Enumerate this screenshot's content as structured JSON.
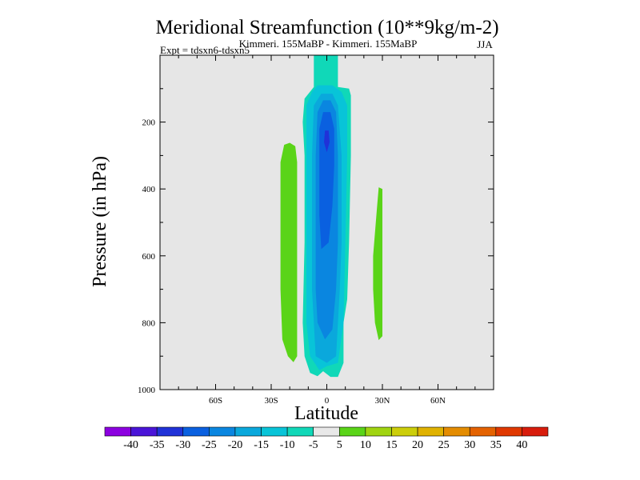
{
  "chart_data": {
    "type": "heatmap",
    "title": "Meridional Streamfunction (10**9kg/m-2)",
    "subtitle_center": "Kimmeri. 155MaBP - Kimmeri. 155MaBP",
    "subtitle_left": "Expt = tdsxn6-tdsxn5",
    "subtitle_right": "JJA",
    "xlabel": "Latitude",
    "ylabel": "Pressure (in hPa)",
    "x_range": [
      -90,
      90
    ],
    "y_range": [
      0,
      1000
    ],
    "x_ticks": [
      {
        "value": -60,
        "label": "60S"
      },
      {
        "value": -30,
        "label": "30S"
      },
      {
        "value": 0,
        "label": "0"
      },
      {
        "value": 30,
        "label": "30N"
      },
      {
        "value": 60,
        "label": "60N"
      }
    ],
    "y_ticks": [
      {
        "value": 200,
        "label": "200"
      },
      {
        "value": 400,
        "label": "400"
      },
      {
        "value": 600,
        "label": "600"
      },
      {
        "value": 800,
        "label": "800"
      },
      {
        "value": 1000,
        "label": "1000"
      }
    ],
    "colorbar": {
      "labels": [
        "-40",
        "-35",
        "-30",
        "-25",
        "-20",
        "-15",
        "-10",
        "-5",
        "5",
        "10",
        "15",
        "20",
        "25",
        "30",
        "35",
        "40"
      ],
      "colors": [
        "#8c00e0",
        "#4a14d8",
        "#2032d8",
        "#0a60e0",
        "#0a86e0",
        "#0aa8dc",
        "#08c4d8",
        "#10d8b8",
        "#e8e8e8",
        "#5ad418",
        "#a0d410",
        "#ccce0a",
        "#e0b200",
        "#e48c00",
        "#e46200",
        "#e03800",
        "#d81c0c"
      ]
    },
    "contours": [
      {
        "level_index": 9,
        "polygon": [
          [
            -23,
            268
          ],
          [
            -20,
            262
          ],
          [
            -17,
            272
          ],
          [
            -16,
            320
          ],
          [
            -16,
            580
          ],
          [
            -16,
            780
          ],
          [
            -16,
            900
          ],
          [
            -18,
            918
          ],
          [
            -21,
            900
          ],
          [
            -24,
            850
          ],
          [
            -25,
            700
          ],
          [
            -25,
            500
          ],
          [
            -25,
            320
          ]
        ]
      },
      {
        "level_index": 9,
        "polygon": [
          [
            28,
            395
          ],
          [
            30,
            400
          ],
          [
            30,
            600
          ],
          [
            30,
            840
          ],
          [
            28,
            852
          ],
          [
            26,
            800
          ],
          [
            25,
            700
          ],
          [
            25,
            600
          ],
          [
            27,
            460
          ]
        ]
      },
      {
        "level_index": 7,
        "polygon": [
          [
            -7,
            0
          ],
          [
            6,
            0
          ],
          [
            6,
            95
          ],
          [
            12,
            100
          ],
          [
            13,
            120
          ],
          [
            13,
            300
          ],
          [
            12,
            560
          ],
          [
            11,
            730
          ],
          [
            9,
            800
          ],
          [
            9,
            920
          ],
          [
            6,
            962
          ],
          [
            2,
            962
          ],
          [
            -2,
            945
          ],
          [
            -5,
            960
          ],
          [
            -9,
            950
          ],
          [
            -12,
            900
          ],
          [
            -13,
            800
          ],
          [
            -12,
            560
          ],
          [
            -12,
            300
          ],
          [
            -13,
            200
          ],
          [
            -12,
            130
          ],
          [
            -7,
            95
          ]
        ]
      },
      {
        "level_index": 6,
        "polygon": [
          [
            -5,
            90
          ],
          [
            3,
            90
          ],
          [
            8,
            110
          ],
          [
            11,
            150
          ],
          [
            11,
            300
          ],
          [
            10,
            560
          ],
          [
            9,
            800
          ],
          [
            6,
            920
          ],
          [
            0,
            930
          ],
          [
            -4,
            942
          ],
          [
            -9,
            900
          ],
          [
            -11,
            800
          ],
          [
            -11,
            560
          ],
          [
            -11,
            300
          ],
          [
            -11,
            150
          ],
          [
            -8,
            110
          ]
        ]
      },
      {
        "level_index": 5,
        "polygon": [
          [
            -3,
            115
          ],
          [
            3,
            115
          ],
          [
            6,
            150
          ],
          [
            8,
            300
          ],
          [
            8,
            560
          ],
          [
            7,
            700
          ],
          [
            5,
            900
          ],
          [
            0,
            920
          ],
          [
            -6,
            900
          ],
          [
            -8,
            700
          ],
          [
            -8,
            560
          ],
          [
            -8,
            300
          ],
          [
            -7,
            150
          ]
        ]
      },
      {
        "level_index": 4,
        "polygon": [
          [
            -2,
            135
          ],
          [
            2,
            135
          ],
          [
            5,
            170
          ],
          [
            6,
            300
          ],
          [
            6,
            560
          ],
          [
            5,
            700
          ],
          [
            3,
            820
          ],
          [
            -1,
            850
          ],
          [
            -5,
            800
          ],
          [
            -6,
            700
          ],
          [
            -6,
            560
          ],
          [
            -6,
            300
          ],
          [
            -5,
            170
          ]
        ]
      },
      {
        "level_index": 3,
        "polygon": [
          [
            -2,
            170
          ],
          [
            2,
            170
          ],
          [
            4,
            220
          ],
          [
            4,
            330
          ],
          [
            3,
            450
          ],
          [
            1,
            560
          ],
          [
            -3,
            580
          ],
          [
            -4,
            480
          ],
          [
            -4,
            330
          ],
          [
            -4,
            220
          ]
        ]
      },
      {
        "level_index": 2,
        "polygon": [
          [
            -1,
            225
          ],
          [
            1,
            225
          ],
          [
            1.5,
            260
          ],
          [
            0,
            290
          ],
          [
            -1.5,
            260
          ]
        ]
      }
    ]
  }
}
